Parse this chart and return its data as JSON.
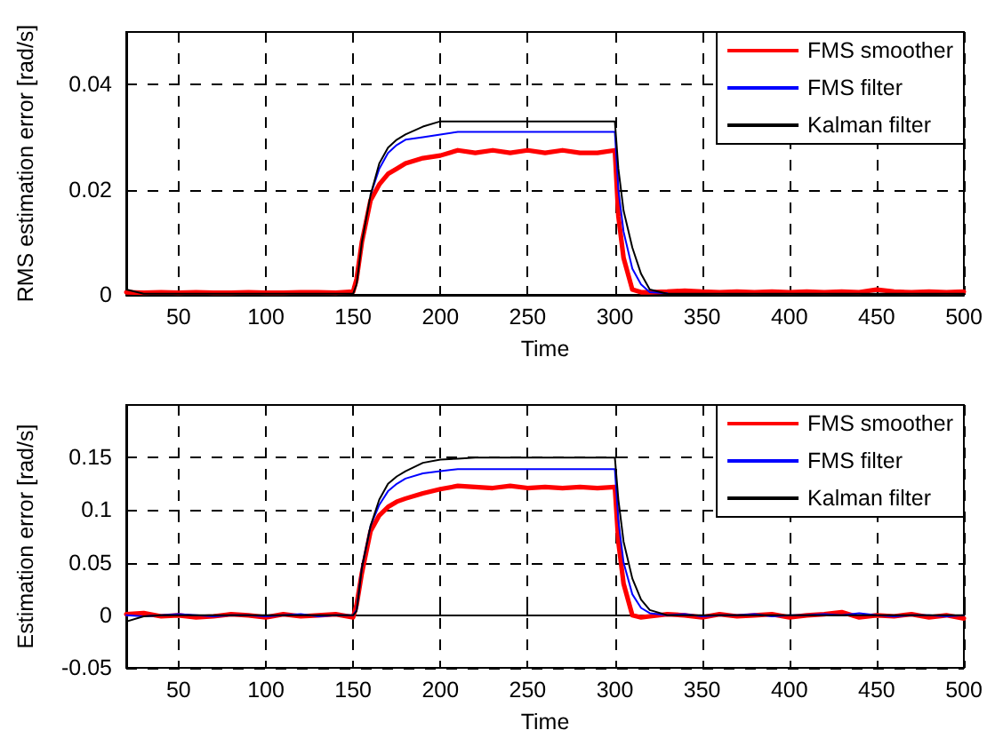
{
  "chart_data": [
    {
      "type": "line",
      "xlabel": "Time",
      "ylabel": "RMS estimation error [rad/s]",
      "xlim": [
        20,
        500
      ],
      "xticks": [
        50,
        100,
        150,
        200,
        250,
        300,
        350,
        400,
        450,
        500
      ],
      "ylim": [
        0,
        0.05
      ],
      "yticks": [
        0,
        0.02,
        0.04
      ],
      "grid": true,
      "legend": "top right",
      "line_style": "solid",
      "marker": "none",
      "x": [
        20,
        30,
        40,
        50,
        60,
        70,
        80,
        90,
        100,
        110,
        120,
        130,
        140,
        150,
        152,
        155,
        160,
        165,
        170,
        175,
        180,
        190,
        200,
        210,
        220,
        230,
        240,
        250,
        260,
        270,
        280,
        290,
        300,
        302,
        305,
        310,
        315,
        320,
        330,
        340,
        350,
        360,
        370,
        380,
        390,
        400,
        410,
        420,
        430,
        440,
        450,
        460,
        470,
        480,
        490,
        500
      ],
      "series": [
        {
          "name": "FMS smoother",
          "color": "#ff0000",
          "values": [
            0.0005,
            0.0004,
            0.0005,
            0.0004,
            0.0005,
            0.0004,
            0.0004,
            0.0005,
            0.0004,
            0.0004,
            0.0005,
            0.0005,
            0.0004,
            0.0006,
            0.003,
            0.01,
            0.018,
            0.021,
            0.023,
            0.024,
            0.025,
            0.026,
            0.0265,
            0.0275,
            0.027,
            0.0275,
            0.027,
            0.0275,
            0.027,
            0.0275,
            0.027,
            0.027,
            0.0275,
            0.015,
            0.007,
            0.001,
            0.0005,
            0.0005,
            0.0006,
            0.0008,
            0.0006,
            0.0005,
            0.0006,
            0.0005,
            0.0006,
            0.0005,
            0.0006,
            0.0005,
            0.0006,
            0.0005,
            0.001,
            0.0006,
            0.0005,
            0.0006,
            0.0005,
            0.0006
          ]
        },
        {
          "name": "FMS filter",
          "color": "#0000ff",
          "values": [
            null,
            null,
            null,
            null,
            null,
            null,
            null,
            null,
            null,
            null,
            null,
            null,
            null,
            null,
            null,
            null,
            0.019,
            0.024,
            0.027,
            0.0285,
            0.0295,
            0.03,
            0.0305,
            0.031,
            0.031,
            0.031,
            0.031,
            0.031,
            0.031,
            0.031,
            0.031,
            0.031,
            0.031,
            0.02,
            0.012,
            0.005,
            0.002,
            0.0005,
            0.0003,
            null,
            null,
            null,
            null,
            null,
            null,
            null,
            null,
            null,
            null,
            null,
            null,
            null,
            null,
            null,
            null,
            null
          ]
        },
        {
          "name": "Kalman filter",
          "color": "#000000",
          "values": [
            0.001,
            0.0002,
            0.0002,
            0.0002,
            0.0002,
            0.0002,
            0.0002,
            0.0002,
            0.0002,
            0.0002,
            0.0002,
            0.0002,
            0.0002,
            0.0002,
            0.002,
            0.01,
            0.019,
            0.025,
            0.028,
            0.0295,
            0.0305,
            0.032,
            0.033,
            0.033,
            0.033,
            0.033,
            0.033,
            0.033,
            0.033,
            0.033,
            0.033,
            0.033,
            0.033,
            0.024,
            0.016,
            0.009,
            0.004,
            0.001,
            0.0002,
            0.0002,
            0.0002,
            0.0002,
            0.0002,
            0.0002,
            0.0002,
            0.0002,
            0.0002,
            0.0002,
            0.0002,
            0.0002,
            0.0002,
            0.0002,
            0.0002,
            0.0002,
            0.0002,
            0.0002
          ]
        }
      ]
    },
    {
      "type": "line",
      "xlabel": "Time",
      "ylabel": "Estimation error [rad/s]",
      "xlim": [
        20,
        500
      ],
      "xticks": [
        50,
        100,
        150,
        200,
        250,
        300,
        350,
        400,
        450,
        500
      ],
      "ylim": [
        -0.05,
        0.2
      ],
      "yticks": [
        -0.05,
        0,
        0.05,
        0.1,
        0.15
      ],
      "grid": true,
      "legend": "top right",
      "line_style": "solid",
      "marker": "none",
      "x": [
        20,
        30,
        40,
        50,
        60,
        70,
        80,
        90,
        100,
        110,
        120,
        130,
        140,
        150,
        152,
        155,
        160,
        165,
        170,
        175,
        180,
        190,
        200,
        210,
        220,
        230,
        240,
        250,
        260,
        270,
        280,
        290,
        300,
        302,
        305,
        310,
        315,
        320,
        330,
        340,
        350,
        360,
        370,
        380,
        390,
        400,
        410,
        420,
        430,
        440,
        450,
        460,
        470,
        480,
        490,
        500
      ],
      "series": [
        {
          "name": "FMS smoother",
          "color": "#ff0000",
          "values": [
            0.001,
            0.002,
            -0.001,
            0,
            -0.002,
            -0.001,
            0.001,
            0,
            -0.002,
            0.001,
            -0.001,
            0,
            0.001,
            -0.002,
            0.01,
            0.04,
            0.08,
            0.095,
            0.103,
            0.108,
            0.111,
            0.116,
            0.12,
            0.123,
            0.122,
            0.121,
            0.123,
            0.121,
            0.122,
            0.121,
            0.122,
            0.121,
            0.122,
            0.07,
            0.03,
            0,
            -0.002,
            -0.001,
            0.001,
            0,
            -0.002,
            0.001,
            -0.001,
            0,
            0.001,
            -0.002,
            0,
            0.001,
            0.003,
            -0.002,
            0,
            -0.001,
            0.001,
            -0.002,
            0,
            -0.003
          ]
        },
        {
          "name": "FMS filter",
          "color": "#0000ff",
          "values": [
            0,
            -0.001,
            0,
            0.001,
            0,
            -0.001,
            0,
            0,
            -0.001,
            0,
            0.001,
            -0.001,
            0,
            0,
            0.005,
            0.045,
            0.085,
            0.105,
            0.118,
            0.125,
            0.13,
            0.135,
            0.137,
            0.139,
            0.139,
            0.139,
            0.139,
            0.139,
            0.139,
            0.139,
            0.139,
            0.139,
            0.139,
            0.09,
            0.05,
            0.02,
            0.007,
            0.002,
            0,
            0.001,
            -0.001,
            0,
            0,
            0.001,
            -0.001,
            0,
            0,
            0.001,
            0,
            0.002,
            0,
            -0.001,
            0,
            0,
            -0.001,
            0
          ]
        },
        {
          "name": "Kalman filter",
          "color": "#000000",
          "values": [
            -0.006,
            -0.001,
            0,
            0,
            0,
            0,
            0,
            0,
            0,
            0,
            0,
            0,
            0,
            0,
            0.004,
            0.045,
            0.085,
            0.11,
            0.125,
            0.132,
            0.137,
            0.145,
            0.148,
            0.149,
            0.15,
            0.15,
            0.15,
            0.15,
            0.15,
            0.15,
            0.15,
            0.15,
            0.15,
            0.11,
            0.07,
            0.035,
            0.015,
            0.005,
            0,
            0,
            0,
            0,
            0,
            0,
            0,
            0,
            0,
            0,
            0,
            0,
            0,
            0,
            0,
            0,
            0,
            0
          ]
        }
      ]
    }
  ]
}
